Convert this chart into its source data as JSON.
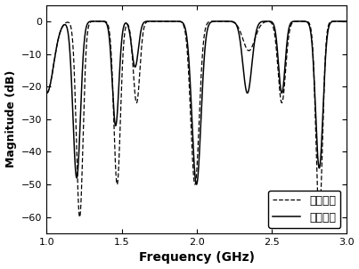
{
  "title": "",
  "xlabel": "Frequency (GHz)",
  "ylabel": "Magnitude (dB)",
  "xlim": [
    1.0,
    3.0
  ],
  "ylim": [
    -65,
    5
  ],
  "yticks": [
    0,
    -10,
    -20,
    -30,
    -40,
    -50,
    -60
  ],
  "xticks": [
    1.0,
    1.5,
    2.0,
    2.5,
    3.0
  ],
  "legend_labels": [
    "仿真结果",
    "测量结果"
  ],
  "legend_loc": "lower right",
  "sim_color": "#000000",
  "meas_color": "#000000",
  "background_color": "#ffffff",
  "figsize": [
    4.03,
    3.02
  ],
  "dpi": 100
}
